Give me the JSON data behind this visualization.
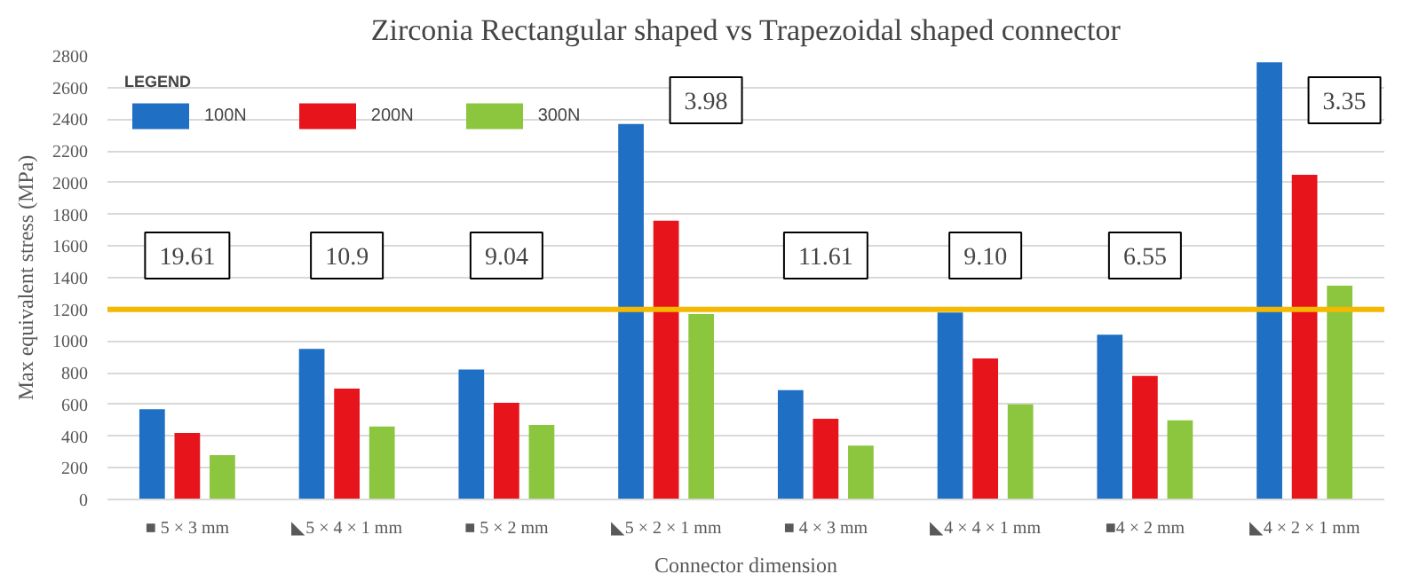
{
  "chart_data": {
    "type": "bar",
    "title": "Zirconia Rectangular shaped vs Trapezoidal shaped connector",
    "xlabel": "Connector dimension",
    "ylabel": "Max equivalent stress (MPa)",
    "legend_title": "LEGEND",
    "categories": [
      "■ 5 × 3 mm",
      "◣5 × 4 × 1 mm",
      "■ 5 × 2 mm",
      "◣5 × 2 × 1 mm",
      "■ 4 × 3 mm",
      "◣4 × 4 × 1 mm",
      "■4 × 2 mm",
      "◣4 × 2 × 1 mm"
    ],
    "series": [
      {
        "name": "100N",
        "color": "#1f6fc4",
        "values": [
          570,
          950,
          820,
          2370,
          690,
          1180,
          1040,
          2760
        ]
      },
      {
        "name": "200N",
        "color": "#e8141b",
        "values": [
          420,
          700,
          610,
          1760,
          510,
          890,
          780,
          2050
        ]
      },
      {
        "name": "300N",
        "color": "#8cc63f",
        "values": [
          280,
          460,
          470,
          1170,
          340,
          600,
          500,
          1350
        ]
      }
    ],
    "ylim": [
      0,
      2800
    ],
    "yticks": [
      0,
      200,
      400,
      600,
      800,
      1000,
      1200,
      1400,
      1600,
      1800,
      2000,
      2200,
      2400,
      2600,
      2800
    ],
    "grid": "y",
    "legend": "top left",
    "ref_lines": [
      {
        "axis": "y",
        "value": 1200,
        "color": "#f5b800"
      }
    ],
    "annotations": [
      "19.61",
      "10.9",
      "9.04",
      "3.98",
      "11.61",
      "9.10",
      "6.55",
      "3.35"
    ]
  }
}
